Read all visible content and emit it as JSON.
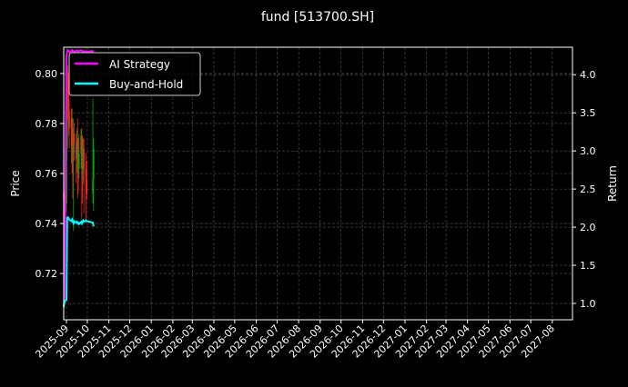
{
  "chart_data": {
    "type": "line",
    "title": "fund [513700.SH]",
    "ylabel_left": "Price",
    "ylabel_right": "Return",
    "ylim_left": [
      0.7015,
      0.8105
    ],
    "ylim_right": [
      0.786,
      4.36
    ],
    "xlim": [
      "2025-08-28",
      "2027-08-30"
    ],
    "grid": true,
    "legend_placement": "top-left",
    "background": "#000000",
    "x_ticks": [
      "2025-09",
      "2025-10",
      "2025-11",
      "2025-12",
      "2026-01",
      "2026-02",
      "2026-03",
      "2026-04",
      "2026-05",
      "2026-06",
      "2026-07",
      "2026-08",
      "2026-09",
      "2026-10",
      "2026-11",
      "2026-12",
      "2027-01",
      "2027-02",
      "2027-03",
      "2027-04",
      "2027-05",
      "2027-06",
      "2027-07",
      "2027-08"
    ],
    "y_ticks_left": [
      0.72,
      0.74,
      0.76,
      0.78,
      0.8
    ],
    "y_ticks_right": [
      1.0,
      1.5,
      2.0,
      2.5,
      3.0,
      3.5,
      4.0
    ],
    "dates": [
      "2025-08-28",
      "2025-08-29",
      "2025-09-01",
      "2025-09-02",
      "2025-09-03",
      "2025-09-04",
      "2025-09-05",
      "2025-09-08",
      "2025-09-09",
      "2025-09-10",
      "2025-09-11",
      "2025-09-12",
      "2025-09-15",
      "2025-09-16",
      "2025-09-17",
      "2025-09-18",
      "2025-09-19",
      "2025-09-22",
      "2025-09-23",
      "2025-09-24",
      "2025-09-25",
      "2025-09-26",
      "2025-09-29",
      "2025-09-30",
      "2025-10-09",
      "2025-10-10"
    ],
    "candles": {
      "up_color": "#00aa00",
      "down_color": "#ff2020",
      "open": [
        0.752,
        0.75,
        0.748,
        0.77,
        0.8,
        0.792,
        0.785,
        0.778,
        0.782,
        0.771,
        0.768,
        0.776,
        0.772,
        0.766,
        0.774,
        0.77,
        0.762,
        0.768,
        0.775,
        0.77,
        0.76,
        0.77,
        0.762,
        0.758,
        0.752,
        0.758
      ],
      "high": [
        0.755,
        0.753,
        0.805,
        0.806,
        0.803,
        0.796,
        0.79,
        0.786,
        0.786,
        0.778,
        0.782,
        0.78,
        0.776,
        0.778,
        0.782,
        0.774,
        0.776,
        0.778,
        0.778,
        0.775,
        0.774,
        0.774,
        0.768,
        0.765,
        0.79,
        0.774
      ],
      "low": [
        0.745,
        0.744,
        0.745,
        0.765,
        0.782,
        0.775,
        0.77,
        0.764,
        0.76,
        0.75,
        0.737,
        0.765,
        0.756,
        0.76,
        0.75,
        0.752,
        0.758,
        0.762,
        0.742,
        0.748,
        0.756,
        0.744,
        0.74,
        0.75,
        0.748,
        0.745
      ],
      "close": [
        0.75,
        0.748,
        0.77,
        0.8,
        0.792,
        0.785,
        0.778,
        0.782,
        0.771,
        0.768,
        0.776,
        0.772,
        0.766,
        0.774,
        0.77,
        0.762,
        0.768,
        0.775,
        0.77,
        0.76,
        0.77,
        0.762,
        0.758,
        0.752,
        0.758,
        0.77
      ]
    },
    "series": [
      {
        "name": "AI Strategy",
        "axis": "right",
        "color": "#ff00ff",
        "values": [
          0.97,
          1.05,
          4.25,
          4.3,
          4.32,
          4.31,
          4.3,
          4.31,
          4.32,
          4.3,
          4.31,
          4.3,
          4.31,
          4.32,
          4.31,
          4.3,
          4.31,
          4.32,
          4.31,
          4.3,
          4.31,
          4.3,
          4.31,
          4.3,
          4.31,
          4.3
        ]
      },
      {
        "name": "Buy-and-Hold",
        "axis": "right",
        "color": "#00ffff",
        "values": [
          0.95,
          1.02,
          1.05,
          2.12,
          2.13,
          2.12,
          2.1,
          2.08,
          2.1,
          2.07,
          2.05,
          2.08,
          2.06,
          2.07,
          2.05,
          2.06,
          2.04,
          2.07,
          2.05,
          2.08,
          2.09,
          2.07,
          2.09,
          2.08,
          2.06,
          2.01
        ]
      }
    ]
  }
}
